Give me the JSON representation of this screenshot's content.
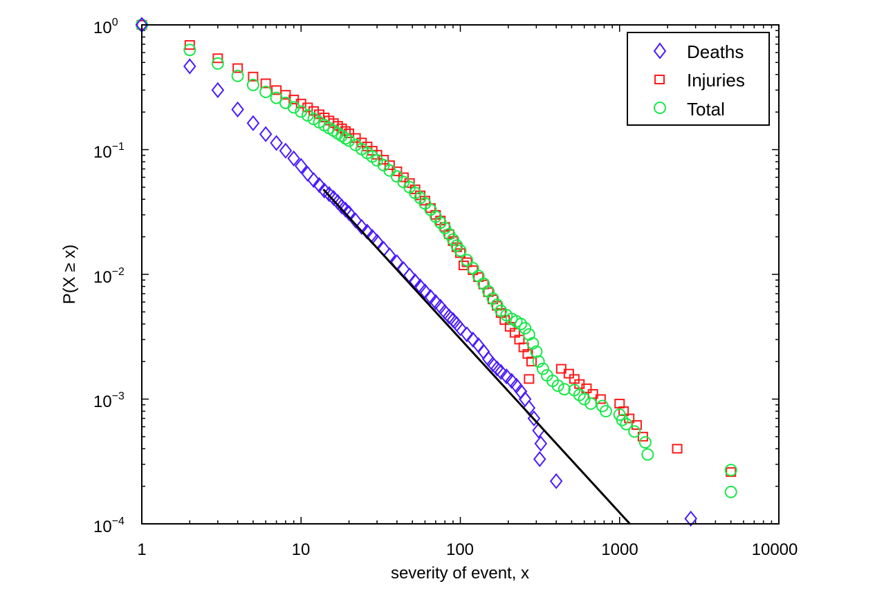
{
  "chart_data": {
    "type": "scatter",
    "xscale": "log",
    "yscale": "log",
    "xlabel": "severity of event, x",
    "ylabel": "P(X ≥ x)",
    "xlim": [
      1,
      10000
    ],
    "ylim": [
      0.0001,
      1
    ],
    "xticks": [
      1,
      10,
      100,
      1000,
      10000
    ],
    "xtick_labels": [
      "1",
      "10",
      "100",
      "1000",
      "10000"
    ],
    "yticks": [
      1,
      0.1,
      0.01,
      0.001,
      0.0001
    ],
    "ytick_labels": [
      {
        "base": "10",
        "exp": "0"
      },
      {
        "base": "10",
        "exp": "−1"
      },
      {
        "base": "10",
        "exp": "−2"
      },
      {
        "base": "10",
        "exp": "−3"
      },
      {
        "base": "10",
        "exp": "−4"
      }
    ],
    "grid": false,
    "legend_position": "top-right",
    "series": [
      {
        "name": "Deaths",
        "marker": "diamond",
        "color": "#4a1aff",
        "points": [
          [
            1,
            1.0
          ],
          [
            2,
            0.465
          ],
          [
            3,
            0.3
          ],
          [
            4,
            0.21
          ],
          [
            5,
            0.163
          ],
          [
            6,
            0.133
          ],
          [
            7,
            0.113
          ],
          [
            8,
            0.098
          ],
          [
            9,
            0.085
          ],
          [
            10,
            0.074
          ],
          [
            11,
            0.064
          ],
          [
            12,
            0.057
          ],
          [
            13,
            0.052
          ],
          [
            14,
            0.047
          ],
          [
            15,
            0.044
          ],
          [
            16,
            0.041
          ],
          [
            17,
            0.038
          ],
          [
            18,
            0.035
          ],
          [
            19,
            0.033
          ],
          [
            20,
            0.031
          ],
          [
            22,
            0.027
          ],
          [
            24,
            0.024
          ],
          [
            26,
            0.022
          ],
          [
            28,
            0.02
          ],
          [
            30,
            0.0183
          ],
          [
            33,
            0.016
          ],
          [
            36,
            0.0142
          ],
          [
            40,
            0.0125
          ],
          [
            44,
            0.011
          ],
          [
            48,
            0.0098
          ],
          [
            52,
            0.0088
          ],
          [
            56,
            0.008
          ],
          [
            60,
            0.0073
          ],
          [
            65,
            0.0066
          ],
          [
            70,
            0.006
          ],
          [
            75,
            0.0055
          ],
          [
            80,
            0.005
          ],
          [
            85,
            0.0046
          ],
          [
            90,
            0.0043
          ],
          [
            95,
            0.004
          ],
          [
            100,
            0.0037
          ],
          [
            110,
            0.0033
          ],
          [
            120,
            0.003
          ],
          [
            130,
            0.0027
          ],
          [
            140,
            0.0024
          ],
          [
            150,
            0.0021
          ],
          [
            160,
            0.0019
          ],
          [
            170,
            0.00176
          ],
          [
            180,
            0.00165
          ],
          [
            195,
            0.00152
          ],
          [
            210,
            0.0014
          ],
          [
            225,
            0.00128
          ],
          [
            240,
            0.00115
          ],
          [
            255,
            0.001
          ],
          [
            270,
            0.00085
          ],
          [
            290,
            0.0007
          ],
          [
            310,
            0.00056
          ],
          [
            320,
            0.00044
          ],
          [
            315,
            0.00033
          ],
          [
            400,
            0.00022
          ],
          [
            2800,
            0.00011
          ]
        ]
      },
      {
        "name": "Injuries",
        "marker": "square",
        "color": "#ff1a1a",
        "points": [
          [
            1,
            1.0
          ],
          [
            2,
            0.69
          ],
          [
            3,
            0.54
          ],
          [
            4,
            0.45
          ],
          [
            5,
            0.385
          ],
          [
            6,
            0.34
          ],
          [
            7,
            0.3
          ],
          [
            8,
            0.275
          ],
          [
            9,
            0.252
          ],
          [
            10,
            0.234
          ],
          [
            11,
            0.218
          ],
          [
            12,
            0.204
          ],
          [
            13,
            0.192
          ],
          [
            14,
            0.181
          ],
          [
            15,
            0.171
          ],
          [
            16,
            0.163
          ],
          [
            17,
            0.155
          ],
          [
            18,
            0.148
          ],
          [
            19,
            0.141
          ],
          [
            20,
            0.135
          ],
          [
            22,
            0.124
          ],
          [
            24,
            0.114
          ],
          [
            26,
            0.106
          ],
          [
            28,
            0.098
          ],
          [
            30,
            0.091
          ],
          [
            33,
            0.083
          ],
          [
            36,
            0.075
          ],
          [
            40,
            0.067
          ],
          [
            44,
            0.06
          ],
          [
            48,
            0.054
          ],
          [
            52,
            0.048
          ],
          [
            56,
            0.043
          ],
          [
            60,
            0.039
          ],
          [
            65,
            0.034
          ],
          [
            70,
            0.03
          ],
          [
            75,
            0.027
          ],
          [
            80,
            0.024
          ],
          [
            85,
            0.021
          ],
          [
            90,
            0.0185
          ],
          [
            95,
            0.0165
          ],
          [
            100,
            0.0148
          ],
          [
            105,
            0.0118
          ],
          [
            110,
            0.0125
          ],
          [
            120,
            0.0108
          ],
          [
            130,
            0.0095
          ],
          [
            140,
            0.0083
          ],
          [
            150,
            0.0072
          ],
          [
            160,
            0.0063
          ],
          [
            170,
            0.0056
          ],
          [
            180,
            0.0049
          ],
          [
            190,
            0.0043
          ],
          [
            205,
            0.0038
          ],
          [
            220,
            0.0034
          ],
          [
            235,
            0.003
          ],
          [
            250,
            0.0026
          ],
          [
            265,
            0.0023
          ],
          [
            280,
            0.002
          ],
          [
            270,
            0.00145
          ],
          [
            430,
            0.00175
          ],
          [
            480,
            0.0016
          ],
          [
            520,
            0.00145
          ],
          [
            560,
            0.00132
          ],
          [
            620,
            0.00122
          ],
          [
            680,
            0.0011
          ],
          [
            760,
            0.001
          ],
          [
            1000,
            0.00092
          ],
          [
            1060,
            0.0008
          ],
          [
            1150,
            0.0007
          ],
          [
            1280,
            0.00062
          ],
          [
            1400,
            0.0005
          ],
          [
            2300,
            0.0004
          ],
          [
            5000,
            0.00026
          ]
        ]
      },
      {
        "name": "Total",
        "marker": "circle",
        "color": "#19e84a",
        "points": [
          [
            1,
            1.0
          ],
          [
            2,
            0.63
          ],
          [
            3,
            0.49
          ],
          [
            4,
            0.39
          ],
          [
            5,
            0.33
          ],
          [
            6,
            0.29
          ],
          [
            7,
            0.26
          ],
          [
            8,
            0.237
          ],
          [
            9,
            0.218
          ],
          [
            10,
            0.202
          ],
          [
            11,
            0.188
          ],
          [
            12,
            0.176
          ],
          [
            13,
            0.166
          ],
          [
            14,
            0.157
          ],
          [
            15,
            0.149
          ],
          [
            16,
            0.142
          ],
          [
            17,
            0.135
          ],
          [
            18,
            0.129
          ],
          [
            19,
            0.123
          ],
          [
            20,
            0.118
          ],
          [
            22,
            0.109
          ],
          [
            24,
            0.101
          ],
          [
            26,
            0.094
          ],
          [
            28,
            0.088
          ],
          [
            30,
            0.082
          ],
          [
            33,
            0.075
          ],
          [
            36,
            0.068
          ],
          [
            40,
            0.061
          ],
          [
            44,
            0.055
          ],
          [
            48,
            0.05
          ],
          [
            52,
            0.045
          ],
          [
            56,
            0.041
          ],
          [
            60,
            0.037
          ],
          [
            65,
            0.033
          ],
          [
            70,
            0.029
          ],
          [
            75,
            0.026
          ],
          [
            80,
            0.0235
          ],
          [
            85,
            0.021
          ],
          [
            90,
            0.019
          ],
          [
            95,
            0.017
          ],
          [
            100,
            0.0155
          ],
          [
            110,
            0.013
          ],
          [
            120,
            0.0112
          ],
          [
            130,
            0.0097
          ],
          [
            140,
            0.0084
          ],
          [
            150,
            0.0073
          ],
          [
            160,
            0.0064
          ],
          [
            170,
            0.0057
          ],
          [
            180,
            0.0051
          ],
          [
            195,
            0.0047
          ],
          [
            210,
            0.0044
          ],
          [
            225,
            0.0042
          ],
          [
            240,
            0.004
          ],
          [
            255,
            0.0037
          ],
          [
            270,
            0.0033
          ],
          [
            285,
            0.0028
          ],
          [
            300,
            0.0024
          ],
          [
            310,
            0.002
          ],
          [
            330,
            0.00175
          ],
          [
            350,
            0.00155
          ],
          [
            380,
            0.0014
          ],
          [
            410,
            0.00128
          ],
          [
            450,
            0.0012
          ],
          [
            520,
            0.00118
          ],
          [
            560,
            0.00108
          ],
          [
            600,
            0.001
          ],
          [
            660,
            0.00092
          ],
          [
            780,
            0.00088
          ],
          [
            820,
            0.0008
          ],
          [
            1000,
            0.00075
          ],
          [
            1040,
            0.00068
          ],
          [
            1100,
            0.00063
          ],
          [
            1240,
            0.00055
          ],
          [
            1450,
            0.00045
          ],
          [
            1500,
            0.00036
          ],
          [
            5000,
            0.00027
          ],
          [
            5000,
            0.00018
          ]
        ]
      }
    ],
    "fit_line": {
      "color": "#000000",
      "x_range": [
        13.8,
        1160
      ],
      "y_range": [
        0.048,
        0.0001
      ]
    }
  },
  "legend": {
    "items": [
      {
        "label": "Deaths",
        "marker": "diamond",
        "color": "#4a1aff"
      },
      {
        "label": "Injuries",
        "marker": "square",
        "color": "#ff1a1a"
      },
      {
        "label": "Total",
        "marker": "circle",
        "color": "#19e84a"
      }
    ]
  }
}
